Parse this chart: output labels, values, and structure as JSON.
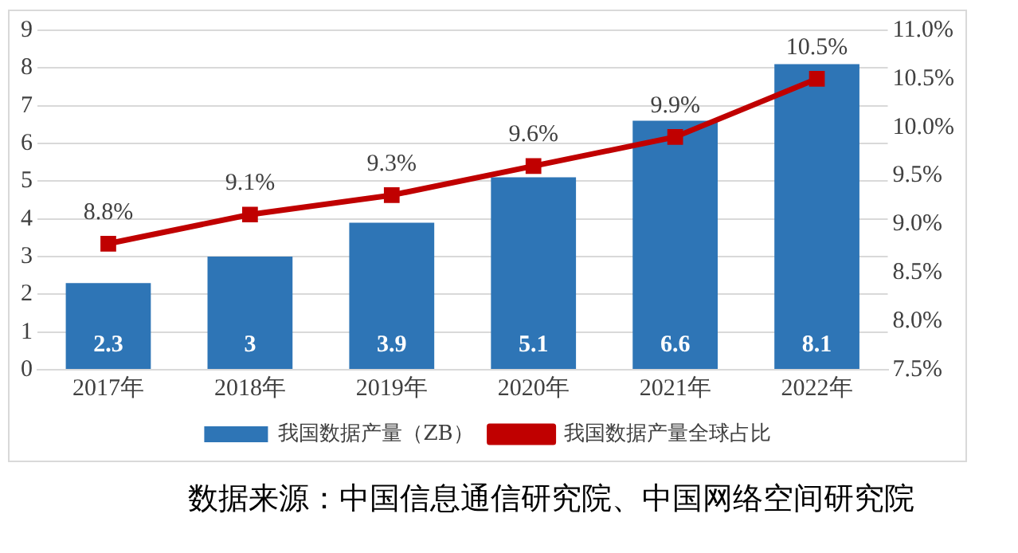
{
  "chart_data": {
    "type": "bar",
    "categories": [
      "2017年",
      "2018年",
      "2019年",
      "2020年",
      "2021年",
      "2022年"
    ],
    "series": [
      {
        "name": "我国数据产量（ZB）",
        "color": "#2e75b6",
        "values": [
          2.3,
          3,
          3.9,
          5.1,
          6.6,
          8.1
        ],
        "value_labels": [
          "2.3",
          "3",
          "3.9",
          "5.1",
          "6.6",
          "8.1"
        ]
      },
      {
        "name": "我国数据产量全球占比",
        "type": "line",
        "axis": "y2",
        "color": "#c00000",
        "values": [
          8.8,
          9.1,
          9.3,
          9.6,
          9.9,
          10.5
        ],
        "value_labels": [
          "8.8%",
          "9.1%",
          "9.3%",
          "9.6%",
          "9.9%",
          "10.5%"
        ]
      }
    ],
    "ylim": [
      0,
      9
    ],
    "yticks": [
      0,
      1,
      2,
      3,
      4,
      5,
      6,
      7,
      8,
      9
    ],
    "y2lim": [
      7.5,
      11
    ],
    "y2ticks": [
      {
        "value": 7.5,
        "label": "7.5%"
      },
      {
        "value": 8,
        "label": "8.0%"
      },
      {
        "value": 8.5,
        "label": "8.5%"
      },
      {
        "value": 9,
        "label": "9.0%"
      },
      {
        "value": 9.5,
        "label": "9.5%"
      },
      {
        "value": 10,
        "label": "10.0%"
      },
      {
        "value": 10.5,
        "label": "10.5%"
      },
      {
        "value": 11,
        "label": "11.0%"
      }
    ],
    "grid": "y",
    "legend": "bottom",
    "marker": "square",
    "line_style": "solid",
    "annotations": [
      "数据来源：中国信息通信研究院、中国网络空间研究院"
    ]
  }
}
